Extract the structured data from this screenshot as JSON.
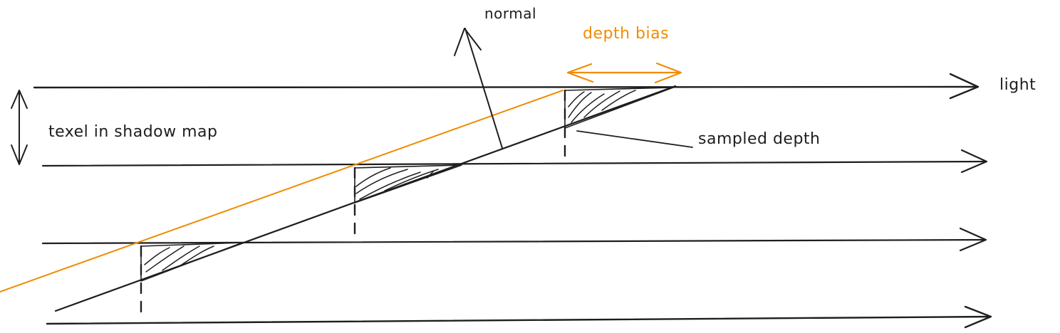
{
  "labels": {
    "normal": "normal",
    "depth_bias": "depth bias",
    "light": "light",
    "texel": "texel in shadow map",
    "sampled_depth": "sampled depth"
  },
  "colors": {
    "ink": "#1e1e1e",
    "accent": "#f08c00"
  }
}
